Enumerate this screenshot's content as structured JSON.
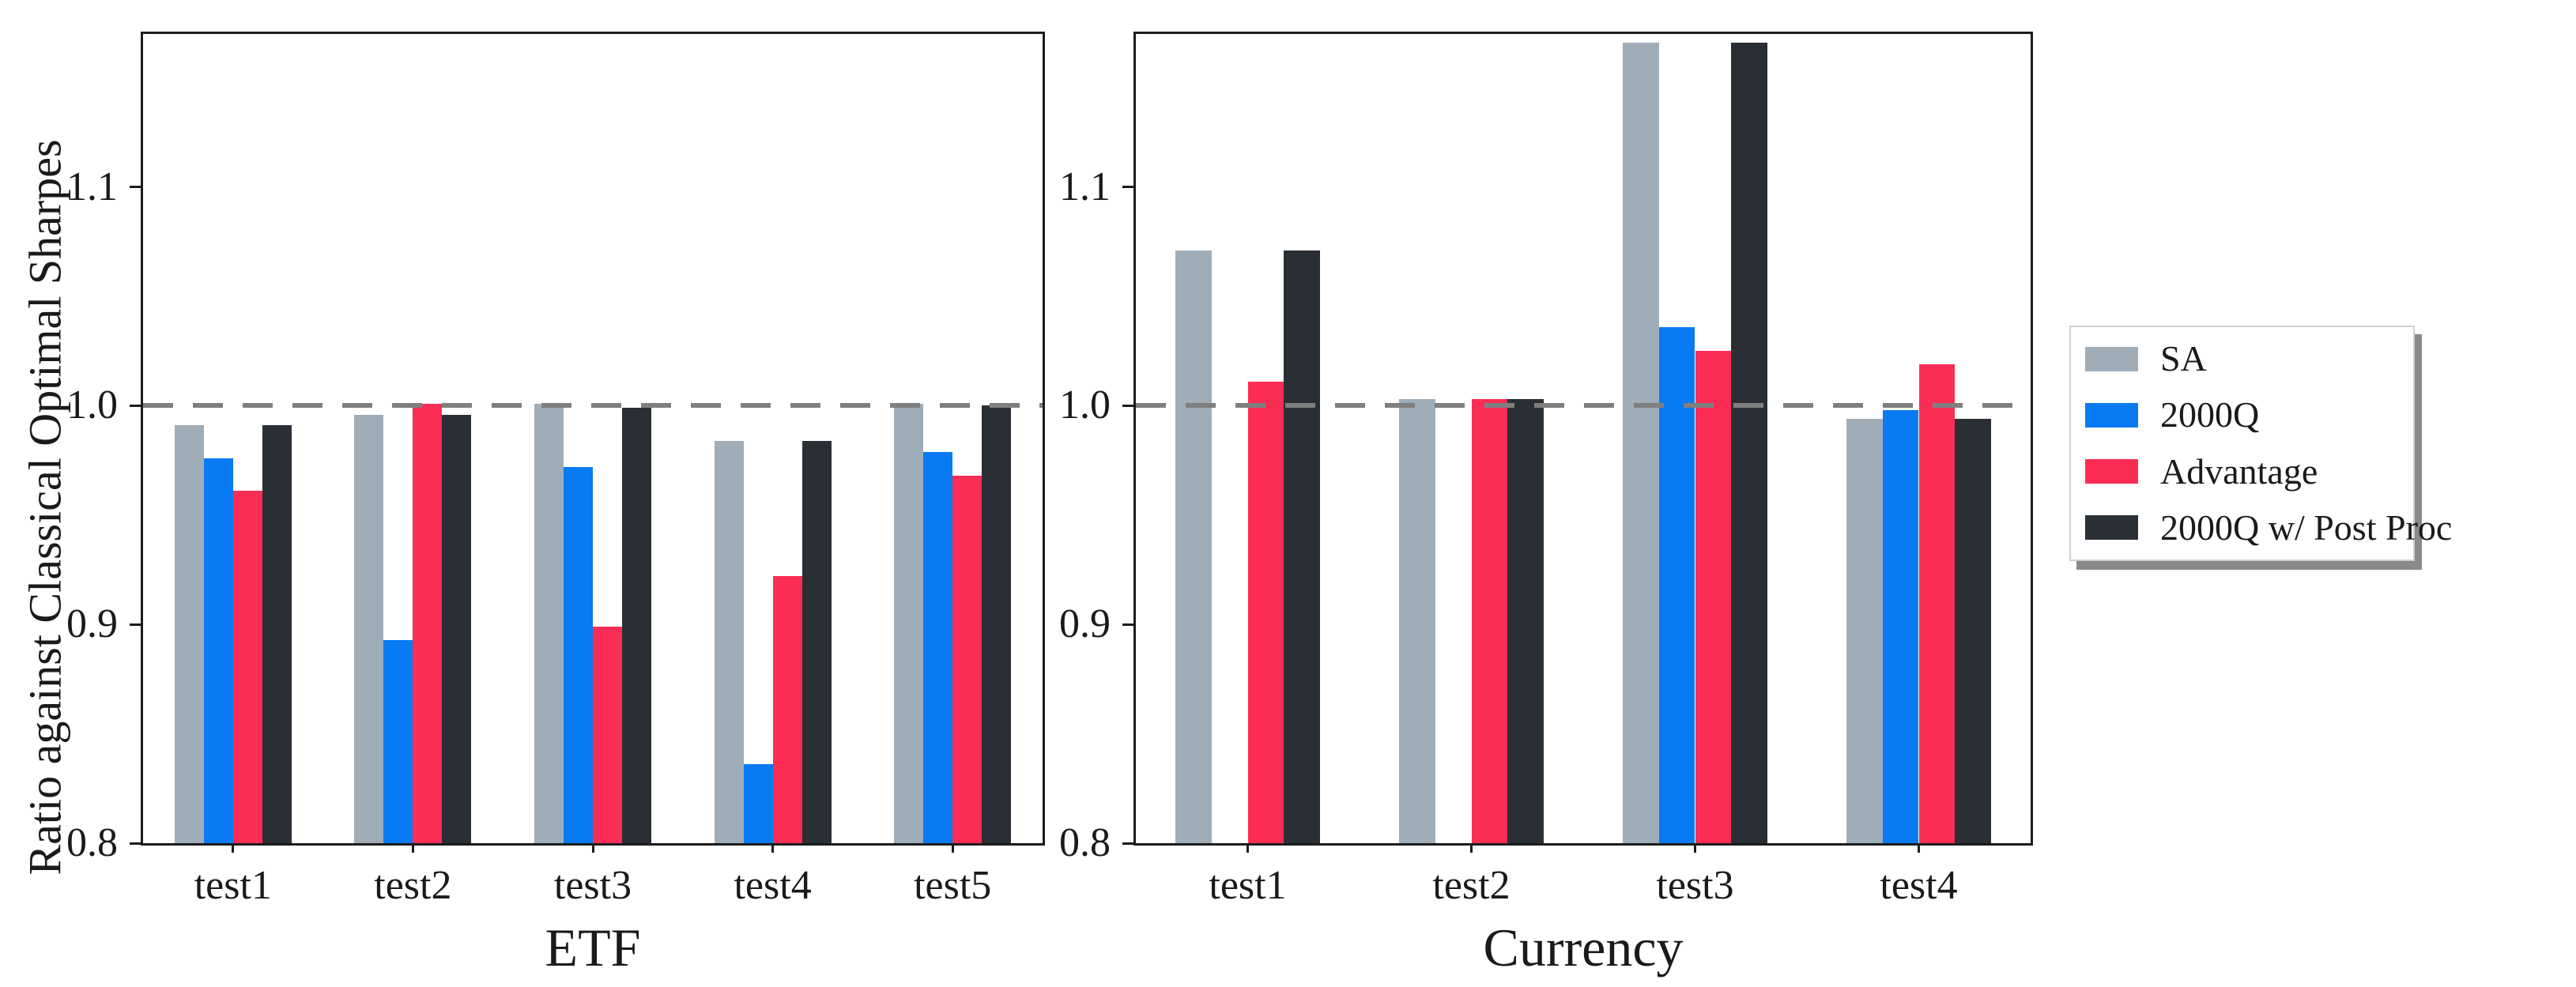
{
  "figure": {
    "ylabel": "Ratio against Classical Optimal Sharpes"
  },
  "legend": {
    "items": [
      {
        "label": "SA",
        "color": "#9fadb8"
      },
      {
        "label": "2000Q",
        "color": "#087af2"
      },
      {
        "label": "Advantage",
        "color": "#fb2d55"
      },
      {
        "label": "2000Q w/ Post Proc",
        "color": "#2a2e35"
      }
    ]
  },
  "chart_data": [
    {
      "type": "bar",
      "subplot": "left",
      "xlabel": "ETF",
      "ylabel": "Ratio against Classical Optimal Sharpes",
      "categories": [
        "test1",
        "test2",
        "test3",
        "test4",
        "test5"
      ],
      "series": [
        {
          "name": "SA",
          "color": "#9fadb8",
          "values": [
            0.991,
            0.996,
            1.001,
            0.984,
            1.001
          ]
        },
        {
          "name": "2000Q",
          "color": "#087af2",
          "values": [
            0.976,
            0.893,
            0.972,
            0.836,
            0.979
          ]
        },
        {
          "name": "Advantage",
          "color": "#fb2d55",
          "values": [
            0.961,
            1.001,
            0.899,
            0.922,
            0.968
          ]
        },
        {
          "name": "2000Q w/ Post Proc",
          "color": "#2a2e35",
          "values": [
            0.991,
            0.996,
            0.999,
            0.984,
            1.0
          ]
        }
      ],
      "ylim": [
        0.8,
        1.17
      ],
      "yticks": [
        "0.8",
        "0.9",
        "1.0",
        "1.1"
      ],
      "reference_line": 1.0,
      "grid": false,
      "legend_position": "outside-right"
    },
    {
      "type": "bar",
      "subplot": "right",
      "xlabel": "Currency",
      "categories": [
        "test1",
        "test2",
        "test3",
        "test4"
      ],
      "series": [
        {
          "name": "SA",
          "color": "#9fadb8",
          "values": [
            1.071,
            1.003,
            1.166,
            0.994
          ]
        },
        {
          "name": "2000Q",
          "color": "#087af2",
          "values": [
            null,
            null,
            1.036,
            0.998
          ]
        },
        {
          "name": "Advantage",
          "color": "#fb2d55",
          "values": [
            1.011,
            1.003,
            1.025,
            1.019
          ]
        },
        {
          "name": "2000Q w/ Post Proc",
          "color": "#2a2e35",
          "values": [
            1.071,
            1.003,
            1.166,
            0.994
          ]
        }
      ],
      "ylim": [
        0.8,
        1.17
      ],
      "yticks": [
        "0.8",
        "0.9",
        "1.0",
        "1.1"
      ],
      "reference_line": 1.0,
      "grid": false
    }
  ]
}
